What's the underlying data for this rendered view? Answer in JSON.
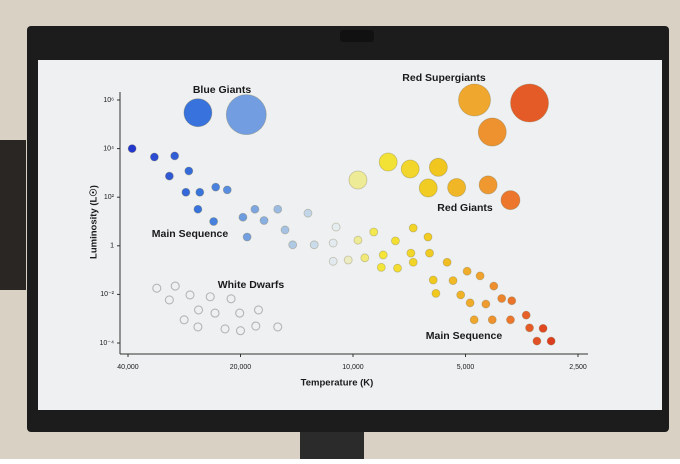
{
  "chart_data": {
    "type": "scatter",
    "xlabel": "Temperature (K)",
    "ylabel": "Luminosity (L☉)",
    "xscale": "log",
    "yscale": "log",
    "xlim": [
      40000,
      2500
    ],
    "ylim": [
      0.0001,
      1000000
    ],
    "xticks": [
      {
        "value": 40000,
        "label": "40,000"
      },
      {
        "value": 20000,
        "label": "20,000"
      },
      {
        "value": 10000,
        "label": "10,000"
      },
      {
        "value": 5000,
        "label": "5,000"
      },
      {
        "value": 2500,
        "label": "2,500"
      }
    ],
    "yticks": [
      {
        "value": 1000000,
        "label": "10⁶"
      },
      {
        "value": 10000,
        "label": "10⁴"
      },
      {
        "value": 100,
        "label": "10²"
      },
      1,
      {
        "value": 0.01,
        "label": "10⁻²"
      },
      {
        "value": 0.0001,
        "label": "10⁻⁴"
      }
    ],
    "grid": false,
    "annotations": [
      "Blue Giants",
      "Red Supergiants",
      "Red Giants",
      "Main Sequence",
      "White Dwarfs",
      "Main Sequence"
    ],
    "series": [
      {
        "marker": "filled",
        "x": [
          26000,
          19300
        ],
        "values": [
          300000,
          250000
        ]
      },
      {
        "marker": "filled",
        "x": [
          4730,
          3370,
          4240
        ],
        "values": [
          1000000,
          750000,
          48000
        ]
      },
      {
        "marker": "filled",
        "x": [
          9700,
          8050,
          7030,
          5910,
          6290,
          5280,
          4350,
          3790
        ],
        "values": [
          510,
          2800,
          1450,
          1700,
          240,
          250,
          320,
          76
        ]
      },
      {
        "marker": "filled",
        "x": [
          39000,
          34000,
          30000,
          31000,
          27500,
          28000,
          25700,
          23300,
          26000,
          21700,
          23600,
          19700,
          18300,
          19200,
          17300,
          15900,
          15200,
          13200,
          14500,
          12700,
          11100,
          11300,
          9700,
          8800,
          7700,
          6900,
          6300,
          11300,
          10300,
          9300,
          8300,
          7000,
          6240,
          8400,
          7600,
          6900,
          5600,
          4950,
          4570,
          6100,
          5400,
          4200,
          6000,
          5150,
          4860,
          4410,
          4000,
          3760,
          4740,
          4240,
          3790,
          3440,
          3370,
          3100,
          3220,
          2950
        ],
        "values": [
          10000,
          4500,
          5000,
          740,
          1200,
          160,
          160,
          260,
          32,
          200,
          10,
          15,
          32,
          2.3,
          11,
          32,
          4.5,
          22,
          1.1,
          1.1,
          5.9,
          1.3,
          1.7,
          3.7,
          1.6,
          5.4,
          2.3,
          0.23,
          0.26,
          0.32,
          0.42,
          0.5,
          0.5,
          0.13,
          0.12,
          0.21,
          0.21,
          0.09,
          0.058,
          0.039,
          0.037,
          0.022,
          0.011,
          0.0095,
          0.0045,
          0.004,
          0.0068,
          0.0055,
          0.0009,
          0.0009,
          0.0009,
          0.0014,
          0.00042,
          0.0004,
          0.00012,
          0.00012
        ]
      },
      {
        "marker": "hollow",
        "color": "#b5b5b5",
        "x": [
          33500,
          29900,
          31000,
          27300,
          24100,
          21200,
          25900,
          23400,
          20100,
          17900,
          28300,
          26000,
          22000,
          20000,
          18200,
          15900
        ],
        "values": [
          0.018,
          0.022,
          0.0059,
          0.0095,
          0.008,
          0.0066,
          0.0023,
          0.0017,
          0.0017,
          0.0023,
          0.0009,
          0.00046,
          0.00038,
          0.00032,
          0.0005,
          0.00046
        ]
      }
    ]
  }
}
